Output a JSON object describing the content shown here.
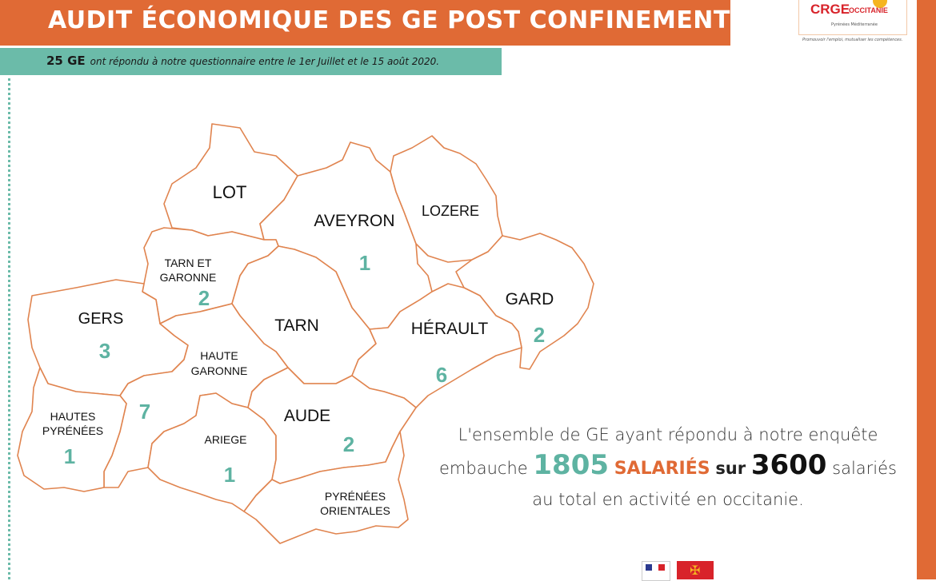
{
  "header": {
    "title": "AUDIT ÉCONOMIQUE DES GE POST CONFINEMENT",
    "subtitle_lead": "25 GE",
    "subtitle_rest": "ont répondu à notre questionnaire entre le 1er Juillet et le 15 août 2020."
  },
  "logo": {
    "crge": "CRGE",
    "occitanie": "OCCITANIE",
    "region": "Pyrénées Méditerranée",
    "tagline": "Promouvoir l'emploi, mutualiser les compétences."
  },
  "map": {
    "departments": [
      {
        "id": "lot",
        "name": "LOT",
        "count": ""
      },
      {
        "id": "aveyron",
        "name": "AVEYRON",
        "count": "1"
      },
      {
        "id": "lozere",
        "name": "LOZERE",
        "count": ""
      },
      {
        "id": "tarn-et-garonne",
        "name_line1": "TARN ET",
        "name_line2": "GARONNE",
        "count": "2"
      },
      {
        "id": "gers",
        "name": "GERS",
        "count": "3"
      },
      {
        "id": "tarn",
        "name": "TARN",
        "count": ""
      },
      {
        "id": "gard",
        "name": "GARD",
        "count": "2"
      },
      {
        "id": "herault",
        "name": "HÉRAULT",
        "count": "6"
      },
      {
        "id": "haute-garonne",
        "name_line1": "HAUTE",
        "name_line2": "GARONNE",
        "count": "7"
      },
      {
        "id": "hautes-pyrenees",
        "name_line1": "HAUTES",
        "name_line2": "PYRÉNÉES",
        "count": "1"
      },
      {
        "id": "ariege",
        "name": "ARIEGE",
        "count": "1"
      },
      {
        "id": "aude",
        "name": "AUDE",
        "count": "2"
      },
      {
        "id": "pyrenees-orientales",
        "name_line1": "PYRÉNÉES",
        "name_line2": "ORIENTALES",
        "count": ""
      }
    ]
  },
  "caption": {
    "line1": "L'ensemble de GE ayant répondu à notre enquête",
    "line2_a": "embauche",
    "line2_num1": "1805",
    "line2_salaries": "SALARIÉS",
    "line2_sur": "sur",
    "line2_num2": "3600",
    "line2_b": "salariés",
    "line3": "au total en activité en occitanie."
  },
  "colors": {
    "orange": "#E06A35",
    "teal": "#6BBBA9",
    "count_teal": "#5EB3A2",
    "border": "#E0844F"
  },
  "icons": [
    "french-republic-logo-icon",
    "occitanie-flag-icon"
  ]
}
